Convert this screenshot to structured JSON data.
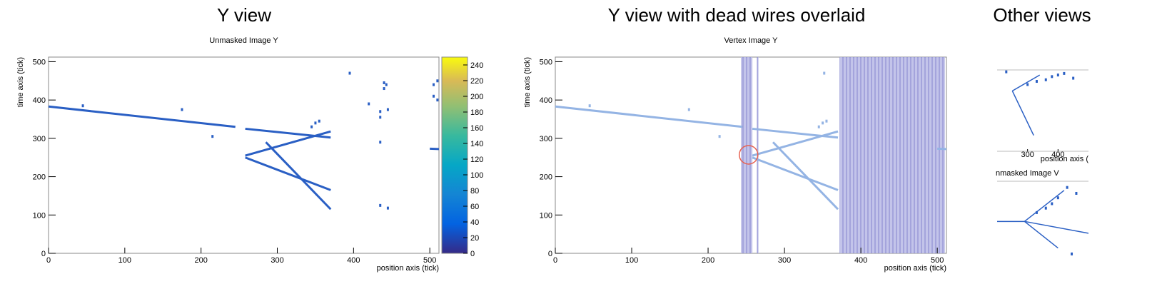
{
  "panels": {
    "titles": [
      "Y view",
      "Y view with dead wires overlaid",
      "Other views"
    ]
  },
  "chart_data": [
    {
      "type": "line",
      "title": "Unmasked Image Y",
      "xlabel": "position axis (tick)",
      "ylabel": "time axis (tick)",
      "xlim": [
        0,
        512
      ],
      "ylim": [
        0,
        512
      ],
      "xticks": [
        0,
        100,
        200,
        300,
        400,
        500
      ],
      "yticks": [
        0,
        100,
        200,
        300,
        400,
        500
      ],
      "colorbar": {
        "zlim": [
          0,
          250
        ],
        "zticks": [
          0,
          20,
          40,
          60,
          80,
          100,
          120,
          140,
          160,
          180,
          200,
          220,
          240
        ]
      },
      "series": [
        {
          "color": "#2a5fc4",
          "x": [
            0,
            245
          ],
          "values": [
            383,
            330
          ]
        },
        {
          "color": "#2a5fc4",
          "x": [
            258,
            370
          ],
          "values": [
            325,
            302
          ]
        },
        {
          "color": "#2a5fc4",
          "x": [
            258,
            370
          ],
          "values": [
            255,
            318
          ]
        },
        {
          "color": "#2a5fc4",
          "x": [
            258,
            370
          ],
          "values": [
            250,
            165
          ]
        },
        {
          "color": "#2a5fc4",
          "x": [
            285,
            370
          ],
          "values": [
            290,
            115
          ]
        },
        {
          "color": "#2a5fc4",
          "x": [
            500,
            512
          ],
          "values": [
            273,
            272
          ]
        },
        {
          "color": "#2a5fc4",
          "mode": "markers",
          "x": [
            45,
            175,
            215,
            395,
            420,
            440,
            443,
            440,
            505,
            510,
            505,
            510,
            435,
            435,
            445,
            435,
            435,
            445,
            350,
            355,
            345
          ],
          "values": [
            385,
            375,
            305,
            470,
            390,
            445,
            440,
            430,
            440,
            450,
            410,
            400,
            370,
            355,
            375,
            290,
            125,
            118,
            340,
            345,
            330
          ]
        }
      ]
    },
    {
      "type": "line",
      "title": "Vertex Image Y",
      "xlabel": "position axis (tick)",
      "ylabel": "time axis (tick)",
      "xlim": [
        0,
        512
      ],
      "ylim": [
        0,
        512
      ],
      "xticks": [
        0,
        100,
        200,
        300,
        400,
        500
      ],
      "yticks": [
        0,
        100,
        200,
        300,
        400,
        500
      ],
      "dead_wires": [
        [
          243,
          258
        ],
        [
          264,
          266
        ],
        [
          372,
          510
        ]
      ],
      "vertex": [
        253,
        257
      ],
      "series": [
        {
          "color": "#94b4e4",
          "x": [
            0,
            245
          ],
          "values": [
            383,
            330
          ]
        },
        {
          "color": "#94b4e4",
          "x": [
            258,
            370
          ],
          "values": [
            325,
            302
          ]
        },
        {
          "color": "#94b4e4",
          "x": [
            258,
            370
          ],
          "values": [
            255,
            318
          ]
        },
        {
          "color": "#94b4e4",
          "x": [
            258,
            370
          ],
          "values": [
            250,
            165
          ]
        },
        {
          "color": "#94b4e4",
          "x": [
            285,
            370
          ],
          "values": [
            290,
            115
          ]
        },
        {
          "color": "#94b4e4",
          "x": [
            500,
            512
          ],
          "values": [
            273,
            272
          ]
        },
        {
          "color": "#94b4e4",
          "mode": "markers",
          "x": [
            45,
            175,
            215,
            350,
            355,
            345,
            352
          ],
          "values": [
            385,
            375,
            305,
            340,
            345,
            330,
            470
          ]
        }
      ]
    },
    {
      "type": "line",
      "xlabel": "position axis (",
      "xlim": [
        200,
        500
      ],
      "ylim": [
        0,
        512
      ],
      "xticks": [
        300,
        400
      ],
      "series": [
        {
          "color": "#2a5fc4",
          "x": [
            250,
            340
          ],
          "values": [
            380,
            480
          ]
        },
        {
          "color": "#2a5fc4",
          "x": [
            250,
            320
          ],
          "values": [
            380,
            100
          ]
        },
        {
          "color": "#2a5fc4",
          "mode": "markers",
          "x": [
            300,
            330,
            360,
            380,
            400,
            420,
            230,
            450
          ],
          "values": [
            420,
            440,
            450,
            470,
            480,
            490,
            500,
            460
          ]
        }
      ]
    },
    {
      "type": "line",
      "title": "nmasked Image V",
      "xlim": [
        200,
        500
      ],
      "ylim": [
        0,
        512
      ],
      "series": [
        {
          "color": "#2a5fc4",
          "x": [
            200,
            290,
            500
          ],
          "values": [
            240,
            240,
            160
          ]
        },
        {
          "color": "#2a5fc4",
          "x": [
            290,
            400
          ],
          "values": [
            240,
            60
          ]
        },
        {
          "color": "#2a5fc4",
          "x": [
            290,
            420
          ],
          "values": [
            240,
            450
          ]
        },
        {
          "color": "#2a5fc4",
          "mode": "markers",
          "x": [
            330,
            360,
            380,
            400,
            430,
            445,
            460
          ],
          "values": [
            300,
            330,
            360,
            400,
            470,
            20,
            430
          ]
        }
      ]
    }
  ]
}
